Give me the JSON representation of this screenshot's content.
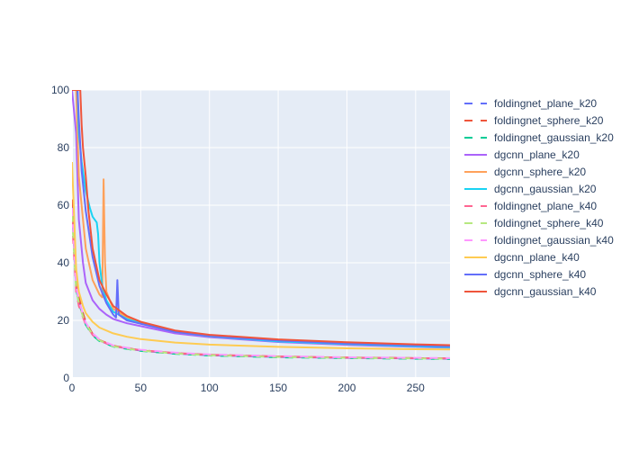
{
  "chart_data": {
    "type": "line",
    "title": "",
    "xlabel": "",
    "ylabel": "",
    "xlim": [
      0,
      275
    ],
    "ylim": [
      0,
      100
    ],
    "x_ticks": [
      0,
      50,
      100,
      150,
      200,
      250
    ],
    "y_ticks": [
      0,
      20,
      40,
      60,
      80,
      100
    ],
    "x_tick_labels": [
      "0",
      "50",
      "100",
      "150",
      "200",
      "250"
    ],
    "y_tick_labels": [
      "0",
      "20",
      "40",
      "60",
      "80",
      "100"
    ],
    "grid": true,
    "legend_position": "right",
    "series": [
      {
        "name": "foldingnet_plane_k20",
        "color": "#636efa",
        "dash": "dash",
        "x": [
          0,
          3,
          5,
          8,
          10,
          15,
          20,
          30,
          40,
          50,
          75,
          100,
          150,
          200,
          250,
          275
        ],
        "y": [
          60,
          32,
          27,
          22,
          19,
          15,
          13,
          11,
          10.3,
          9.5,
          8.5,
          7.9,
          7.3,
          7.0,
          6.8,
          6.7
        ]
      },
      {
        "name": "foldingnet_sphere_k20",
        "color": "#ef553b",
        "dash": "dash",
        "x": [
          0,
          3,
          5,
          8,
          10,
          15,
          20,
          30,
          40,
          50,
          75,
          100,
          150,
          200,
          250,
          275
        ],
        "y": [
          62,
          33,
          28,
          22.5,
          19.5,
          15.3,
          13.2,
          11.2,
          10.4,
          9.6,
          8.6,
          8.0,
          7.4,
          7.1,
          6.9,
          6.8
        ]
      },
      {
        "name": "foldingnet_gaussian_k20",
        "color": "#00cc96",
        "dash": "dash",
        "x": [
          0,
          3,
          5,
          8,
          10,
          15,
          20,
          30,
          40,
          50,
          75,
          100,
          150,
          200,
          250,
          275
        ],
        "y": [
          58,
          31,
          26,
          21.5,
          18.5,
          14.8,
          12.8,
          10.9,
          10.1,
          9.4,
          8.4,
          7.8,
          7.2,
          6.9,
          6.7,
          6.6
        ]
      },
      {
        "name": "dgcnn_plane_k20",
        "color": "#ab63fa",
        "dash": "solid",
        "x": [
          0,
          3,
          5,
          8,
          10,
          15,
          20,
          25,
          30,
          40,
          50,
          75,
          100,
          150,
          200,
          250,
          275
        ],
        "y": [
          100,
          85,
          55,
          40,
          33,
          27,
          24,
          22,
          20.5,
          19,
          18,
          15.5,
          14.2,
          12.5,
          11.5,
          10.8,
          10.5
        ]
      },
      {
        "name": "dgcnn_sphere_k20",
        "color": "#ffa15a",
        "dash": "solid",
        "x": [
          0,
          3,
          5,
          8,
          10,
          15,
          20,
          22,
          23,
          24,
          25,
          30,
          40,
          50,
          75,
          100,
          150,
          200,
          250,
          275
        ],
        "y": [
          100,
          100,
          70,
          55,
          45,
          34,
          29,
          28,
          69,
          40,
          30,
          24,
          21,
          19.5,
          16,
          14.5,
          12.8,
          11.8,
          11.1,
          10.8
        ]
      },
      {
        "name": "dgcnn_gaussian_k20",
        "color": "#19d3f3",
        "dash": "solid",
        "x": [
          0,
          4,
          5,
          7,
          10,
          13,
          15,
          18,
          19,
          20,
          22,
          25,
          30,
          40,
          50,
          75,
          100,
          150,
          200,
          250,
          275
        ],
        "y": [
          100,
          100,
          85,
          75,
          65,
          59,
          56,
          54,
          50,
          40,
          32,
          27,
          23,
          20.5,
          19,
          16,
          14.5,
          12.7,
          11.8,
          11.0,
          10.7
        ]
      },
      {
        "name": "foldingnet_plane_k40",
        "color": "#ff6692",
        "dash": "dash",
        "x": [
          0,
          3,
          5,
          8,
          10,
          15,
          20,
          30,
          40,
          50,
          75,
          100,
          150,
          200,
          250,
          275
        ],
        "y": [
          55,
          30,
          25,
          21,
          18.5,
          15,
          13,
          11.1,
          10.3,
          9.7,
          8.7,
          8.1,
          7.5,
          7.1,
          6.9,
          6.8
        ]
      },
      {
        "name": "foldingnet_sphere_k40",
        "color": "#b6e880",
        "dash": "dash",
        "x": [
          0,
          3,
          5,
          8,
          10,
          15,
          20,
          30,
          40,
          50,
          75,
          100,
          150,
          200,
          250,
          275
        ],
        "y": [
          57,
          31,
          26,
          21.3,
          18.8,
          15.1,
          13.1,
          11.0,
          10.2,
          9.5,
          8.5,
          7.9,
          7.3,
          7.0,
          6.8,
          6.7
        ]
      },
      {
        "name": "foldingnet_gaussian_k40",
        "color": "#ff97ff",
        "dash": "dash",
        "x": [
          0,
          3,
          5,
          8,
          10,
          15,
          20,
          30,
          40,
          50,
          75,
          100,
          150,
          200,
          250,
          275
        ],
        "y": [
          59,
          32,
          27,
          22,
          19.2,
          15.5,
          13.4,
          11.3,
          10.5,
          9.8,
          8.8,
          8.2,
          7.6,
          7.2,
          7.0,
          6.9
        ]
      },
      {
        "name": "dgcnn_plane_k40",
        "color": "#fecb52",
        "dash": "solid",
        "x": [
          0,
          3,
          5,
          8,
          10,
          15,
          20,
          30,
          40,
          50,
          75,
          100,
          150,
          200,
          250,
          275
        ],
        "y": [
          75,
          38,
          30,
          25,
          22.5,
          19.5,
          17.5,
          15.5,
          14.3,
          13.5,
          12.3,
          11.6,
          10.8,
          10.3,
          10.0,
          9.9
        ]
      },
      {
        "name": "dgcnn_sphere_k40",
        "color": "#636efa",
        "dash": "solid",
        "x": [
          0,
          4,
          5,
          7,
          10,
          15,
          20,
          25,
          30,
          32,
          33,
          34,
          40,
          50,
          75,
          100,
          150,
          200,
          250,
          275
        ],
        "y": [
          100,
          100,
          90,
          72,
          58,
          42,
          32,
          26,
          22,
          21,
          34,
          22,
          20,
          18.8,
          16,
          14.6,
          13.0,
          12.0,
          11.3,
          11.0
        ]
      },
      {
        "name": "dgcnn_gaussian_k40",
        "color": "#ef553b",
        "dash": "solid",
        "x": [
          0,
          6,
          7,
          8,
          10,
          12,
          15,
          20,
          25,
          30,
          40,
          50,
          75,
          100,
          150,
          200,
          250,
          275
        ],
        "y": [
          100,
          100,
          88,
          80,
          70,
          58,
          45,
          34,
          29,
          25,
          21.5,
          19.5,
          16.5,
          15,
          13.4,
          12.4,
          11.7,
          11.4
        ]
      }
    ]
  }
}
